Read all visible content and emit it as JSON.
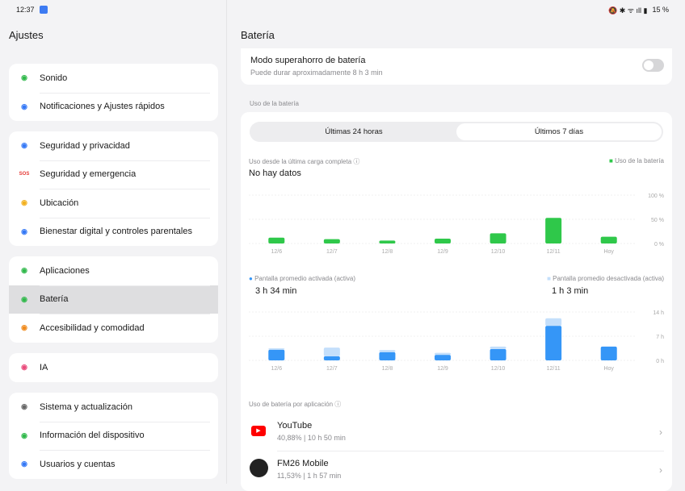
{
  "status": {
    "time": "12:37",
    "battery": "15 %"
  },
  "sidebar": {
    "title": "Ajustes",
    "groups": [
      [
        {
          "label": "Sonido",
          "icon": "bell-icon",
          "color": "#2fb84a"
        },
        {
          "label": "Notificaciones y Ajustes rápidos",
          "icon": "notification-icon",
          "color": "#3478f6"
        }
      ],
      [
        {
          "label": "Seguridad y privacidad",
          "icon": "shield-icon",
          "color": "#3478f6"
        },
        {
          "label": "Seguridad y emergencia",
          "icon": "sos-icon",
          "color": "#e53935"
        },
        {
          "label": "Ubicación",
          "icon": "location-icon",
          "color": "#f2b01e"
        },
        {
          "label": "Bienestar digital y controles parentales",
          "icon": "wellbeing-icon",
          "color": "#3478f6"
        }
      ],
      [
        {
          "label": "Aplicaciones",
          "icon": "apps-icon",
          "color": "#2fb84a"
        },
        {
          "label": "Batería",
          "icon": "battery-icon",
          "color": "#2fb84a",
          "selected": true
        },
        {
          "label": "Accesibilidad y comodidad",
          "icon": "accessibility-icon",
          "color": "#f08a1c"
        }
      ],
      [
        {
          "label": "IA",
          "icon": "ai-icon",
          "color": "#e94a7a"
        }
      ],
      [
        {
          "label": "Sistema y actualización",
          "icon": "gear-icon",
          "color": "#666"
        },
        {
          "label": "Información del dispositivo",
          "icon": "phone-icon",
          "color": "#2fb84a"
        },
        {
          "label": "Usuarios y cuentas",
          "icon": "user-icon",
          "color": "#3478f6"
        }
      ]
    ]
  },
  "main": {
    "title": "Batería",
    "saver": {
      "title": "Modo superahorro de batería",
      "subtitle": "Puede durar aproximadamente 8 h 3 min",
      "enabled": false
    },
    "usage_header": "Uso de la batería",
    "tabs": [
      "Últimas 24 horas",
      "Últimos 7 días"
    ],
    "active_tab": 1,
    "since_label": "Uso desde la última carga completa",
    "since_value": "No hay datos",
    "legend_usage": "Uso de la batería",
    "screen_on_label": "Pantalla promedio activada (activa)",
    "screen_on_value": "3 h 34 min",
    "screen_off_label": "Pantalla promedio desactivada (activa)",
    "screen_off_value": "1 h 3 min",
    "per_app_label": "Uso de batería por aplicación",
    "apps": [
      {
        "name": "YouTube",
        "percent": "40,88%",
        "time": "10 h 50 min"
      },
      {
        "name": "FM26 Mobile",
        "percent": "11,53%",
        "time": "1 h 57 min"
      }
    ]
  },
  "chart_data": [
    {
      "type": "bar",
      "title": "Uso de la batería",
      "categories": [
        "12/6",
        "12/7",
        "12/8",
        "12/9",
        "12/10",
        "12/11",
        "Hoy"
      ],
      "values": [
        12,
        9,
        6,
        10,
        21,
        53,
        14
      ],
      "ylim": [
        0,
        100
      ],
      "yticks": [
        "100 %",
        "50 %",
        "0 %"
      ],
      "color": "#2fc84a"
    },
    {
      "type": "bar",
      "stacked": true,
      "categories": [
        "12/6",
        "12/7",
        "12/8",
        "12/9",
        "12/10",
        "12/11",
        "Hoy"
      ],
      "series": [
        {
          "name": "Pantalla promedio activada (activa)",
          "values": [
            3.1,
            1.2,
            2.4,
            1.6,
            3.3,
            10.0,
            4.0
          ],
          "color": "#3596f7"
        },
        {
          "name": "Pantalla promedio desactivada (activa)",
          "values": [
            0.4,
            2.5,
            0.6,
            0.6,
            0.7,
            2.2,
            0
          ],
          "color": "#c4dffb"
        }
      ],
      "ylim": [
        0,
        14
      ],
      "yticks": [
        "14 h",
        "7 h",
        "0 h"
      ]
    }
  ]
}
